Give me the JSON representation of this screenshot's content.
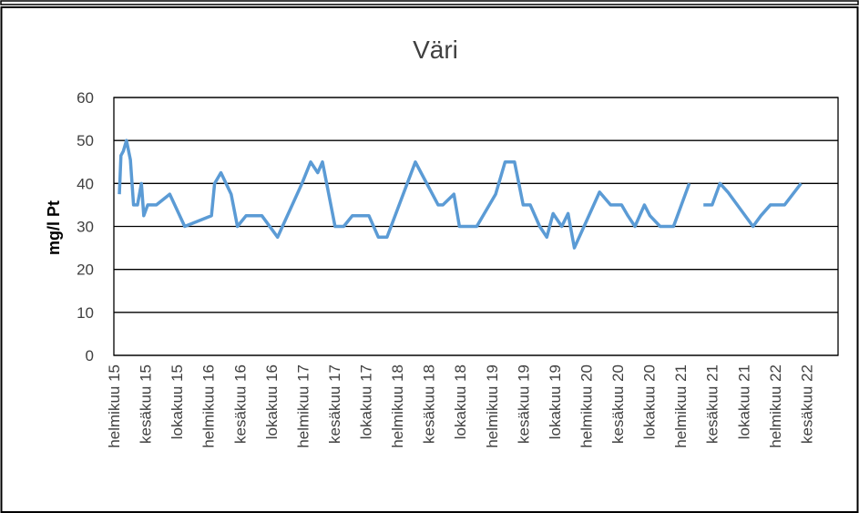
{
  "chart_data": {
    "type": "line",
    "title": "Väri",
    "y_label": "mg/l Pt",
    "xlim": [
      0,
      92
    ],
    "ylim": [
      0,
      60
    ],
    "yticks": [
      0,
      10,
      20,
      30,
      40,
      50,
      60
    ],
    "grid": true,
    "xticks": [
      {
        "value": 0,
        "label": "helmikuu 15"
      },
      {
        "value": 4,
        "label": "kesäkuu 15"
      },
      {
        "value": 8,
        "label": "lokakuu 15"
      },
      {
        "value": 12,
        "label": "helmikuu 16"
      },
      {
        "value": 16,
        "label": "kesäkuu 16"
      },
      {
        "value": 20,
        "label": "lokakuu 16"
      },
      {
        "value": 24,
        "label": "helmikuu 17"
      },
      {
        "value": 28,
        "label": "kesäkuu 17"
      },
      {
        "value": 32,
        "label": "lokakuu 17"
      },
      {
        "value": 36,
        "label": "helmikuu 18"
      },
      {
        "value": 40,
        "label": "kesäkuu 18"
      },
      {
        "value": 44,
        "label": "lokakuu 18"
      },
      {
        "value": 48,
        "label": "helmikuu 19"
      },
      {
        "value": 52,
        "label": "kesäkuu 19"
      },
      {
        "value": 56,
        "label": "lokakuu 19"
      },
      {
        "value": 60,
        "label": "helmikuu 20"
      },
      {
        "value": 64,
        "label": "kesäkuu 20"
      },
      {
        "value": 68,
        "label": "lokakuu 20"
      },
      {
        "value": 72,
        "label": "helmikuu 21"
      },
      {
        "value": 76,
        "label": "kesäkuu 21"
      },
      {
        "value": 80,
        "label": "lokakuu 21"
      },
      {
        "value": 84,
        "label": "helmikuu 22"
      },
      {
        "value": 88,
        "label": "kesäkuu 22"
      }
    ],
    "x": [
      0.7,
      0.9,
      1.2,
      1.6,
      2.1,
      2.5,
      3.0,
      3.5,
      3.8,
      4.3,
      5.4,
      7.1,
      9.0,
      12.4,
      12.8,
      13.6,
      14.9,
      15.7,
      16.8,
      18.8,
      20.8,
      23.9,
      25.0,
      25.9,
      26.5,
      28.1,
      29.2,
      30.3,
      32.4,
      33.6,
      34.7,
      38.3,
      41.2,
      41.8,
      43.2,
      43.9,
      46.1,
      48.5,
      49.7,
      50.9,
      52.0,
      52.9,
      54.1,
      55.0,
      55.8,
      56.9,
      57.7,
      58.5,
      61.7,
      63.1,
      64.5,
      65.3,
      66.2,
      67.4,
      68.1,
      69.4,
      71.1,
      73.1,
      74.0,
      74.9,
      76.0,
      77.0,
      78.0,
      81.2,
      82.2,
      83.4,
      85.2,
      87.3
    ],
    "series": [
      {
        "name": "Väri",
        "color": "#5b9bd5",
        "values": [
          37.5,
          46.5,
          47.5,
          50,
          45.5,
          35,
          35,
          40,
          32.5,
          35,
          35,
          37.5,
          30,
          32.5,
          40,
          42.5,
          37.5,
          30,
          32.5,
          32.5,
          27.5,
          40,
          45,
          42.5,
          45,
          30,
          30,
          32.5,
          32.5,
          27.5,
          27.5,
          45,
          35,
          35,
          37.5,
          30,
          30,
          37.5,
          45,
          45,
          35,
          35,
          30,
          27.5,
          33,
          30,
          33,
          25,
          38,
          35,
          35,
          32.5,
          30,
          35,
          32.5,
          30,
          30,
          40,
          null,
          35,
          35,
          40,
          38,
          30,
          32.5,
          35,
          35,
          40
        ]
      }
    ]
  }
}
